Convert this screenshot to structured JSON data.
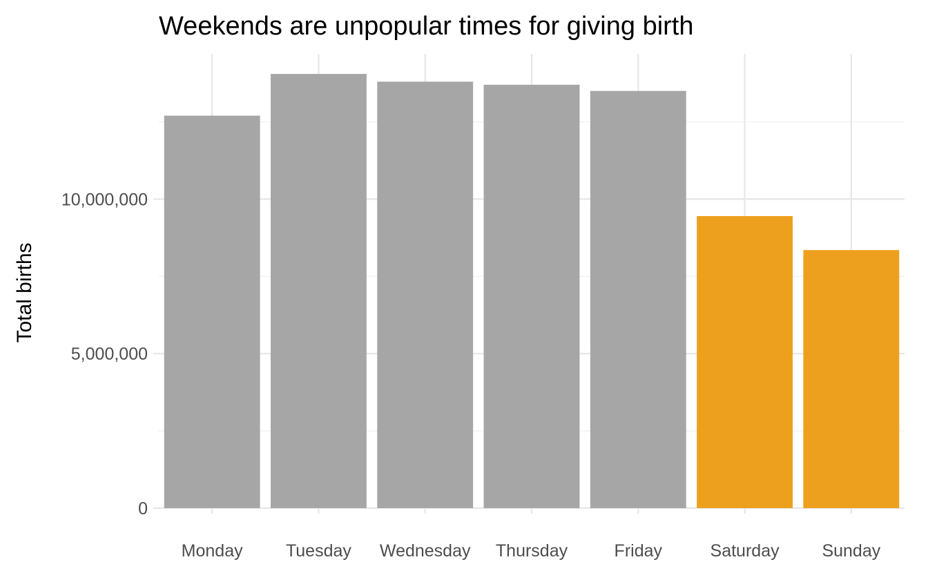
{
  "chart_data": {
    "type": "bar",
    "title": "Weekends are unpopular times for giving birth",
    "xlabel": "",
    "ylabel": "Total births",
    "categories": [
      "Monday",
      "Tuesday",
      "Wednesday",
      "Thursday",
      "Friday",
      "Saturday",
      "Sunday"
    ],
    "values": [
      12700000,
      14050000,
      13800000,
      13700000,
      13500000,
      9450000,
      8350000
    ],
    "highlight": [
      false,
      false,
      false,
      false,
      false,
      true,
      true
    ],
    "colors": {
      "default": "#a6a6a6",
      "highlight": "#eda01e"
    },
    "ylim": [
      0,
      14700000
    ],
    "yticks": [
      0,
      5000000,
      10000000
    ],
    "ytick_labels": [
      "0",
      "5,000,000",
      "10,000,000"
    ],
    "grid": true,
    "legend": "none"
  }
}
